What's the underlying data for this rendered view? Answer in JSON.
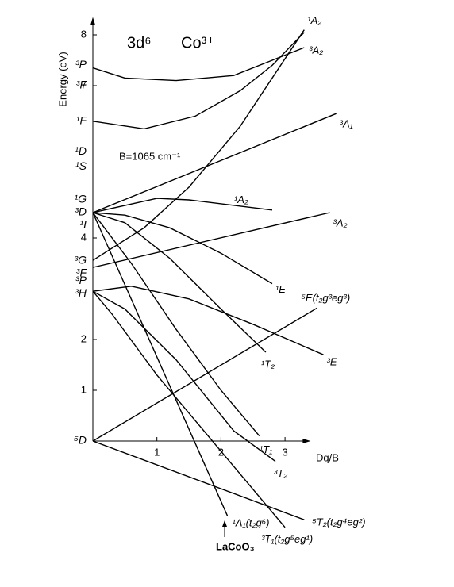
{
  "chart_data": {
    "type": "line",
    "title": "3d⁶",
    "subtitle": "Co³⁺",
    "annotation": "B=1065 cm⁻¹",
    "ylabel": "Energy (eV)",
    "xlabel": "Dq/B",
    "pointer_label": "LaCoO₃",
    "xlim": [
      0,
      3.4
    ],
    "ylim": [
      -1.8,
      8.35
    ],
    "xticks": [
      1,
      2,
      3
    ],
    "yticks": [
      1,
      2,
      4,
      7,
      8
    ],
    "term_labels": [
      {
        "label": "³P",
        "value": 7.4
      },
      {
        "label": "³F",
        "value": 7.0
      },
      {
        "label": "¹F",
        "value": 6.3
      },
      {
        "label": "¹D",
        "value": 5.7
      },
      {
        "label": "¹S",
        "value": 5.4
      },
      {
        "label": "¹G",
        "value": 4.75
      },
      {
        "label": "³D",
        "value": 4.5
      },
      {
        "label": "¹I",
        "value": 4.25
      },
      {
        "label": "³G",
        "value": 3.55
      },
      {
        "label": "³F",
        "value": 3.3
      },
      {
        "label": "³P",
        "value": 3.15
      },
      {
        "label": "³H",
        "value": 2.9
      },
      {
        "label": "⁵D",
        "value": 0
      }
    ],
    "series": [
      {
        "name": "³A₂",
        "color": "#000",
        "x": [
          0,
          0.5,
          1.3,
          2.2,
          2.8,
          3.3
        ],
        "values": [
          7.35,
          7.15,
          7.1,
          7.2,
          7.5,
          7.75
        ]
      },
      {
        "name": "¹A₂",
        "color": "#000",
        "x": [
          0,
          0.8,
          1.6,
          2.3,
          2.8,
          3.3
        ],
        "values": [
          6.3,
          6.15,
          6.4,
          6.9,
          7.4,
          8.05
        ]
      },
      {
        "name": null,
        "color": "#000",
        "x": [
          0,
          0.8,
          1.5,
          2.3,
          3.3
        ],
        "values": [
          3.56,
          4.2,
          5.0,
          6.2,
          8.1
        ]
      },
      {
        "name": "³A₁",
        "color": "#000",
        "x": [
          0,
          3.8
        ],
        "values": [
          4.5,
          6.45
        ]
      },
      {
        "name": "¹A₂",
        "color": "#000",
        "x": [
          0,
          1,
          1.5,
          2.8
        ],
        "values": [
          4.5,
          4.78,
          4.75,
          4.55
        ]
      },
      {
        "name": "³A₂",
        "color": "#000",
        "x": [
          0,
          3.7
        ],
        "values": [
          3.42,
          4.5
        ]
      },
      {
        "name": "¹E",
        "color": "#000",
        "x": [
          0,
          0.5,
          1.2,
          2,
          2.8
        ],
        "values": [
          4.5,
          4.45,
          4.2,
          3.7,
          3.1
        ]
      },
      {
        "name": "¹T₂",
        "color": "#000",
        "x": [
          0,
          0.5,
          1.2,
          2,
          2.7
        ],
        "values": [
          4.5,
          4.3,
          3.6,
          2.6,
          1.75
        ]
      },
      {
        "name": "¹T₁",
        "color": "#000",
        "x": [
          0,
          0.6,
          1.3,
          2,
          2.6
        ],
        "values": [
          4.5,
          3.5,
          2.2,
          1.0,
          0.1
        ]
      },
      {
        "name": "¹A₁(t₂g⁶)",
        "color": "#000",
        "x": [
          0,
          2.1
        ],
        "values": [
          4.5,
          -1.47
        ]
      },
      {
        "name": "³E",
        "color": "#000",
        "x": [
          0,
          0.6,
          1.5,
          2.5,
          3.6
        ],
        "values": [
          2.95,
          3.05,
          2.8,
          2.3,
          1.7
        ]
      },
      {
        "name": "³T₂",
        "color": "#000",
        "x": [
          0,
          0.5,
          1.3,
          2.2,
          2.85
        ],
        "values": [
          2.95,
          2.6,
          1.6,
          0.2,
          -0.4
        ]
      },
      {
        "name": "³T₁(t₂g⁵eg¹)",
        "color": "#000",
        "x": [
          0,
          0.3,
          1,
          2,
          3
        ],
        "values": [
          2.95,
          2.5,
          1.3,
          -0.2,
          -1.7
        ]
      },
      {
        "name": "⁵E(t₂g³eg³)",
        "color": "#000",
        "x": [
          0,
          3.5
        ],
        "values": [
          0,
          2.62
        ]
      },
      {
        "name": "⁵T₂(t₂g⁴eg²)",
        "color": "#000",
        "x": [
          0,
          3.3
        ],
        "values": [
          0,
          -1.55
        ]
      }
    ]
  }
}
